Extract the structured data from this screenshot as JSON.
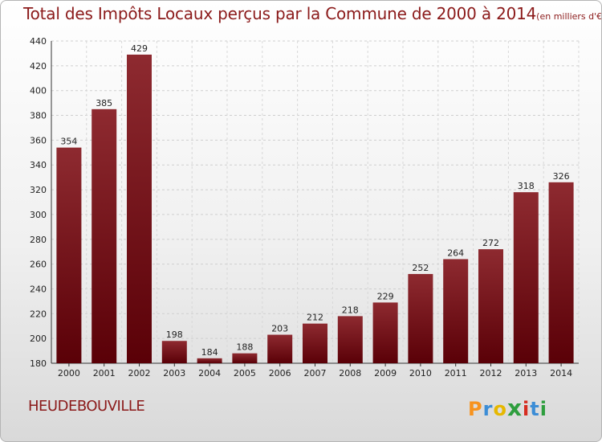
{
  "title": "Total des Impôts Locaux perçus par la Commune de 2000 à 2014",
  "unit": "(en milliers d'€)",
  "commune": "HEUDEBOUVILLE",
  "logo": {
    "letters": [
      "P",
      "r",
      "o",
      "x",
      "i",
      "t",
      "i"
    ],
    "colors": [
      "#f7931e",
      "#3c8dd6",
      "#e6b800",
      "#2e9e3e",
      "#d62d20",
      "#3c8dd6",
      "#2e9e3e"
    ]
  },
  "chart_data": {
    "type": "bar",
    "categories": [
      "2000",
      "2001",
      "2002",
      "2003",
      "2004",
      "2005",
      "2006",
      "2007",
      "2008",
      "2009",
      "2010",
      "2011",
      "2012",
      "2013",
      "2014"
    ],
    "values": [
      354,
      385,
      429,
      198,
      184,
      188,
      203,
      212,
      218,
      229,
      252,
      264,
      272,
      318,
      326
    ],
    "ylim": [
      180,
      440
    ],
    "yticks": [
      180,
      200,
      220,
      240,
      260,
      280,
      300,
      320,
      340,
      360,
      380,
      400,
      420,
      440
    ],
    "grid": true,
    "bar_color": "#7a1c22"
  }
}
